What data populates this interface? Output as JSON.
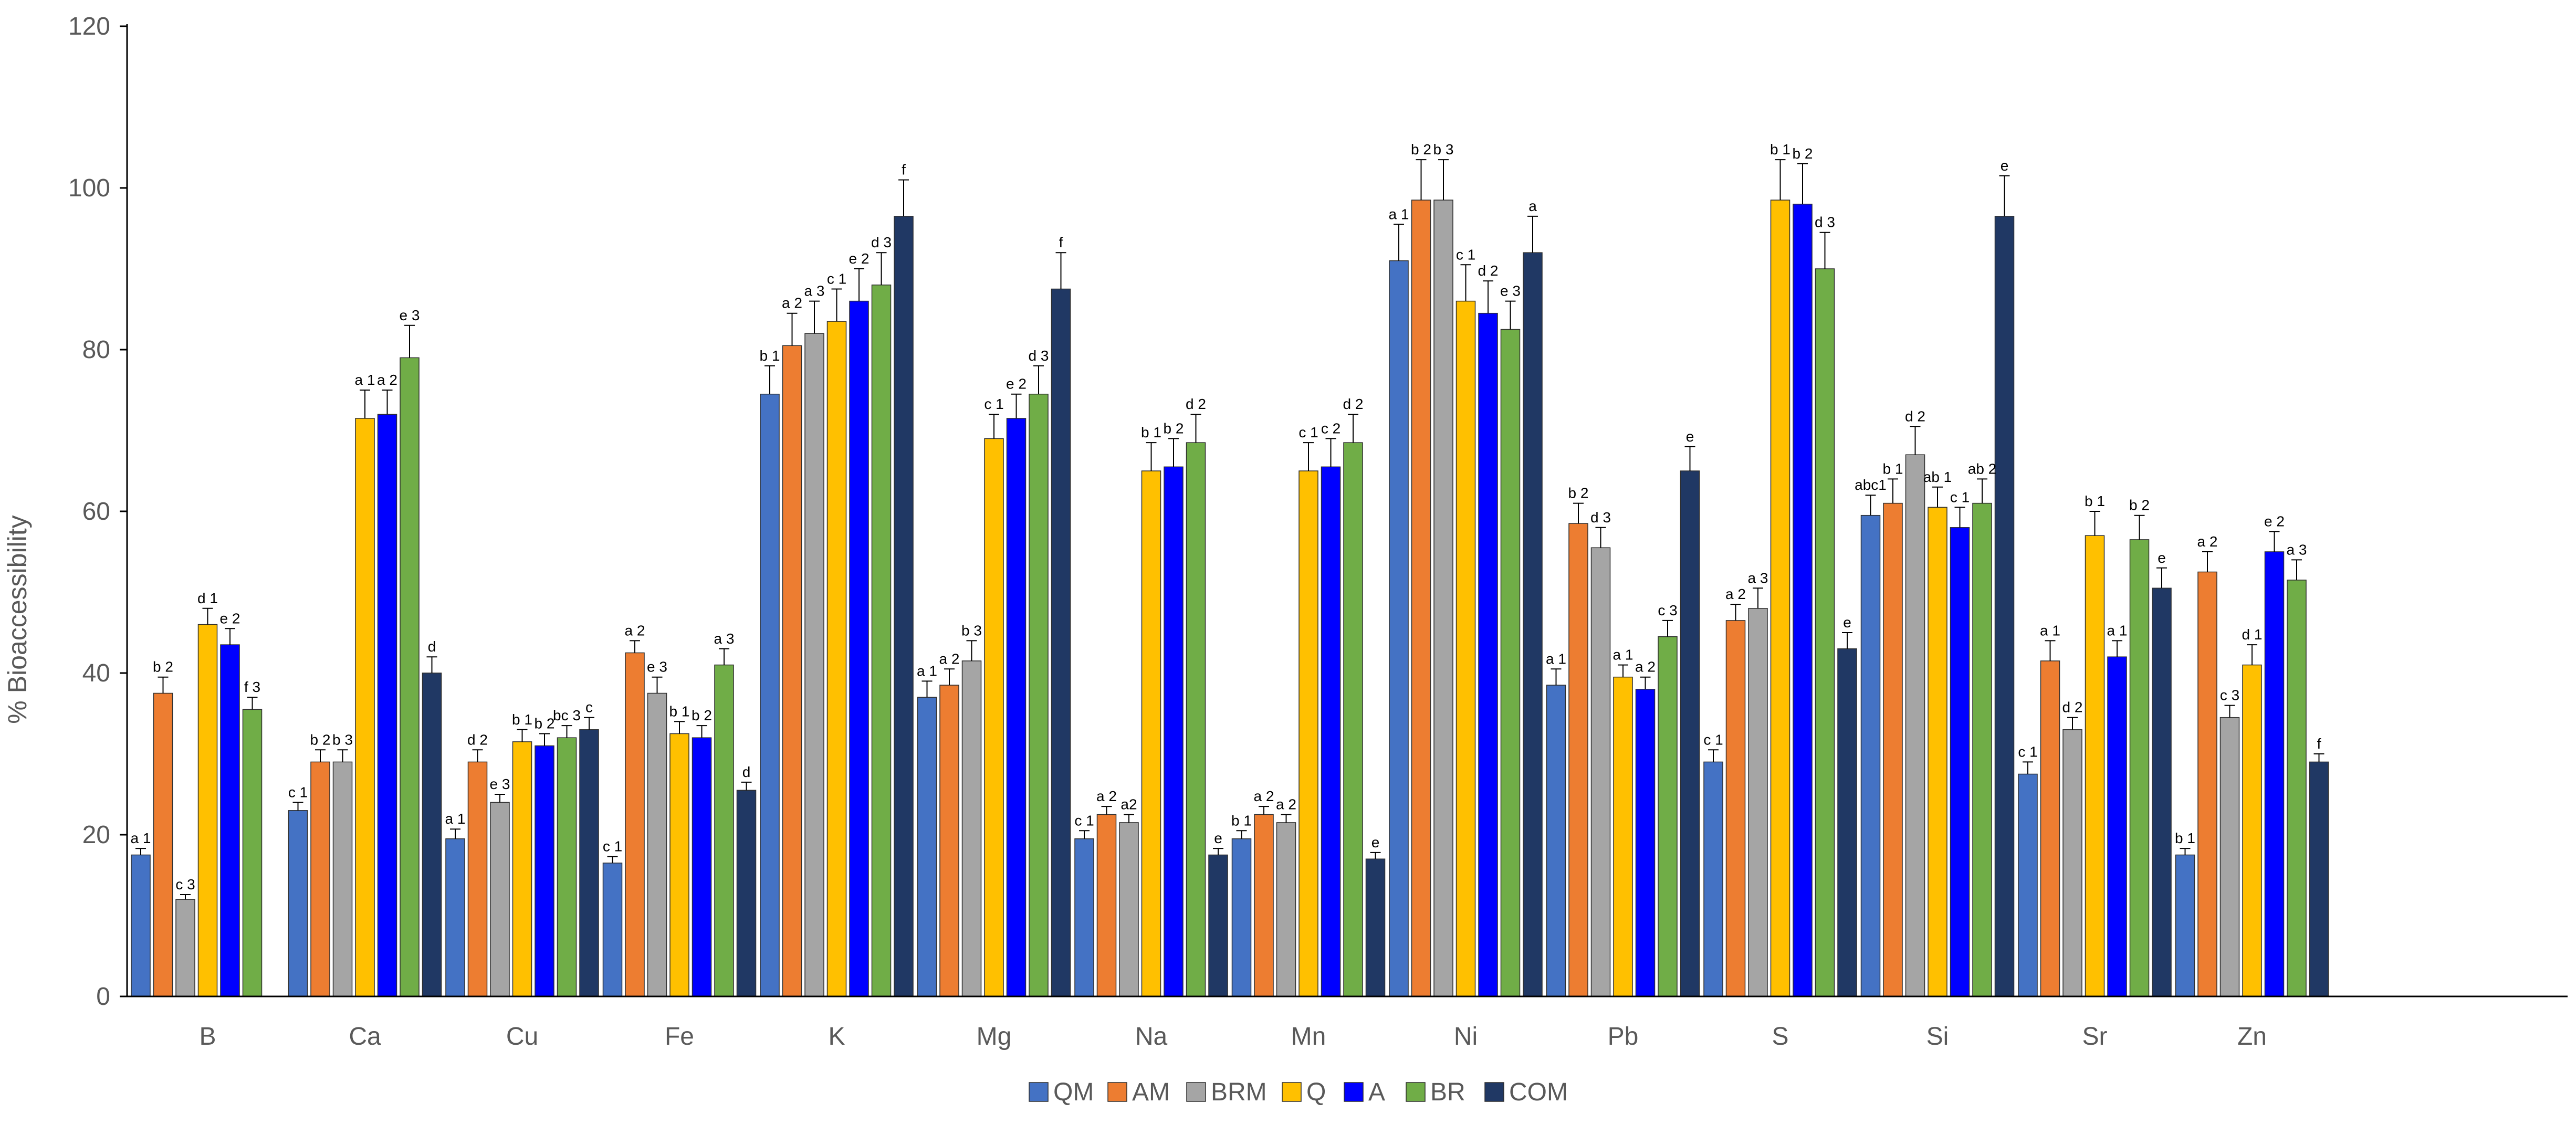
{
  "chart_data": {
    "type": "bar",
    "title": "",
    "xlabel": "",
    "ylabel": "% Bioaccessibility",
    "ylim": [
      0,
      120
    ],
    "yticks": [
      0,
      20,
      40,
      60,
      80,
      100,
      120
    ],
    "grid": false,
    "legend_position": "bottom-center",
    "categories": [
      "B",
      "Ca",
      "Cu",
      "Fe",
      "K",
      "Mg",
      "Na",
      "Mn",
      "Ni",
      "Pb",
      "S",
      "Si",
      "Sr",
      "Zn"
    ],
    "series": [
      {
        "name": "QM",
        "color": "#4472C4",
        "values": [
          17.5,
          23,
          19.5,
          16.5,
          74.5,
          37,
          19.5,
          19.5,
          91,
          38.5,
          29,
          59.5,
          27.5,
          17.5
        ],
        "errors": [
          0.8,
          1.0,
          1.2,
          0.8,
          3.5,
          2.0,
          1.0,
          1.0,
          4.5,
          2.0,
          1.5,
          2.5,
          1.5,
          0.8
        ],
        "labels": [
          "a 1",
          "c 1",
          "a 1",
          "c 1",
          "b 1",
          "a 1",
          "c 1",
          "b 1",
          "a 1",
          "a 1",
          "c 1",
          "abc1",
          "c 1",
          "b 1"
        ]
      },
      {
        "name": "AM",
        "color": "#ED7D31",
        "values": [
          37.5,
          29,
          29,
          42.5,
          80.5,
          38.5,
          22.5,
          22.5,
          98.5,
          58.5,
          46.5,
          61,
          41.5,
          52.5
        ],
        "errors": [
          2.0,
          1.5,
          1.5,
          1.5,
          4.0,
          2.0,
          1.0,
          1.0,
          5.0,
          2.5,
          2.0,
          3.0,
          2.5,
          2.5
        ],
        "labels": [
          "b 2",
          "b 2",
          "d 2",
          "a 2",
          "a 2",
          "a 2",
          "a 2",
          "a 2",
          "b 2",
          "b 2",
          "a 2",
          "b 1",
          "a 1",
          "a 2"
        ]
      },
      {
        "name": "BRM",
        "color": "#A5A5A5",
        "values": [
          12,
          29,
          24,
          37.5,
          82,
          41.5,
          21.5,
          21.5,
          98.5,
          55.5,
          48,
          67,
          33,
          34.5
        ],
        "errors": [
          0.6,
          1.5,
          1.0,
          2.0,
          4.0,
          2.5,
          1.0,
          1.0,
          5.0,
          2.5,
          2.5,
          3.5,
          1.5,
          1.5
        ],
        "labels": [
          "c 3",
          "b 3",
          "e 3",
          "e 3",
          "a 3",
          "b 3",
          "a2",
          "a 2",
          "b 3",
          "d 3",
          "a 3",
          "d 2",
          "d 2",
          "c 3"
        ]
      },
      {
        "name": "Q",
        "color": "#FFC000",
        "values": [
          46,
          71.5,
          31.5,
          32.5,
          83.5,
          69,
          65,
          65,
          86,
          39.5,
          98.5,
          60.5,
          57,
          41
        ],
        "errors": [
          2.0,
          3.5,
          1.5,
          1.5,
          4.0,
          3.0,
          3.5,
          3.5,
          4.5,
          1.5,
          5.0,
          2.5,
          3.0,
          2.5
        ],
        "labels": [
          "d 1",
          "a 1",
          "b 1",
          "b 1",
          "c 1",
          "c 1",
          "b 1",
          "c 1",
          "c 1",
          "a 1",
          "b 1",
          "ab 1",
          "b 1",
          "d 1"
        ]
      },
      {
        "name": "A",
        "color": "#0000FF",
        "values": [
          43.5,
          72,
          31,
          32,
          86,
          71.5,
          65.5,
          65.5,
          84.5,
          38,
          98,
          58,
          42,
          55
        ],
        "errors": [
          2.0,
          3.0,
          1.5,
          1.5,
          4.0,
          3.0,
          3.5,
          3.5,
          4.0,
          1.5,
          5.0,
          2.5,
          2.0,
          2.5
        ],
        "labels": [
          "e 2",
          "a 2",
          "b 2",
          "b 2",
          "e 2",
          "e 2",
          "b 2",
          "c 2",
          "d 2",
          "a 2",
          "b 2",
          "c 1",
          "a 1",
          "e 2"
        ]
      },
      {
        "name": "BR",
        "color": "#70AD47",
        "values": [
          35.5,
          79,
          32,
          41,
          88,
          74.5,
          68.5,
          68.5,
          82.5,
          44.5,
          90,
          61,
          56.5,
          51.5
        ],
        "errors": [
          1.5,
          4.0,
          1.5,
          2.0,
          4.0,
          3.5,
          3.5,
          3.5,
          3.5,
          2.0,
          4.5,
          3.0,
          3.0,
          2.5
        ],
        "labels": [
          "f 3",
          "e 3",
          "bc 3",
          "a 3",
          "d 3",
          "d 3",
          "d 2",
          "d 2",
          "e 3",
          "c 3",
          "d 3",
          "ab 2",
          "b 2",
          "a 3"
        ]
      },
      {
        "name": "COM",
        "color": "#203864",
        "values": [
          null,
          40,
          33,
          25.5,
          96.5,
          87.5,
          17.5,
          17,
          92,
          65,
          43,
          96.5,
          50.5,
          29
        ],
        "errors": [
          0,
          2.0,
          1.5,
          1.0,
          4.5,
          4.5,
          0.8,
          0.8,
          4.5,
          3.0,
          2.0,
          5.0,
          2.5,
          1.0
        ],
        "labels": [
          "",
          "d",
          "c",
          "d",
          "f",
          "f",
          "e",
          "e",
          "a",
          "e",
          "e",
          "e",
          "e",
          "f"
        ]
      }
    ]
  }
}
